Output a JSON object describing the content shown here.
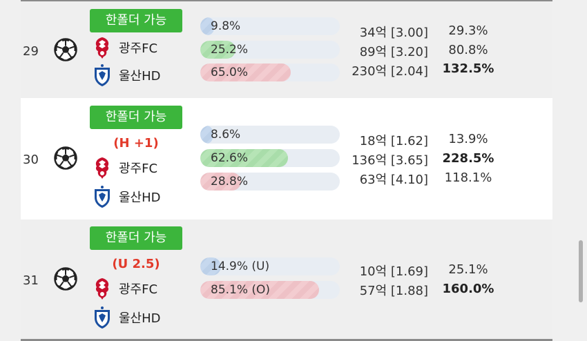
{
  "badge_label": "한폴더 가능",
  "matches": [
    {
      "no": "29",
      "handicap": "",
      "teams": [
        "광주FC",
        "울산HD"
      ],
      "bars": [
        {
          "label": "9.8%",
          "pct": 9.8,
          "color": "blue"
        },
        {
          "label": "25.2%",
          "pct": 25.2,
          "color": "green"
        },
        {
          "label": "65.0%",
          "pct": 65.0,
          "color": "red"
        }
      ],
      "odds": [
        "34억 [3.00]",
        "89억 [3.20]",
        "230억 [2.04]"
      ],
      "roi": [
        "29.3%",
        "80.8%",
        "132.5%"
      ]
    },
    {
      "no": "30",
      "handicap": "(H +1)",
      "teams": [
        "광주FC",
        "울산HD"
      ],
      "bars": [
        {
          "label": "8.6%",
          "pct": 8.6,
          "color": "blue"
        },
        {
          "label": "62.6%",
          "pct": 62.6,
          "color": "green"
        },
        {
          "label": "28.8%",
          "pct": 28.8,
          "color": "red"
        }
      ],
      "odds": [
        "18억 [1.62]",
        "136억 [3.65]",
        "63억 [4.10]"
      ],
      "roi": [
        "13.9%",
        "228.5%",
        "118.1%"
      ]
    },
    {
      "no": "31",
      "handicap": "(U 2.5)",
      "teams": [
        "광주FC",
        "울산HD"
      ],
      "bars": [
        {
          "label": "14.9% (U)",
          "pct": 14.9,
          "color": "blue"
        },
        {
          "label": "85.1% (O)",
          "pct": 85.1,
          "color": "red"
        }
      ],
      "odds": [
        "10억 [1.69]",
        "57억 [1.88]"
      ],
      "roi": [
        "25.1%",
        "160.0%"
      ]
    }
  ],
  "colors": {
    "badge": "#3cb53c",
    "handicap": "#e23a2a",
    "row_gray": "#efefef",
    "bar_track": "#e8edf3"
  },
  "icons": {
    "sport": "soccer-ball-icon",
    "home_crest": "gwangju-fc-crest-icon",
    "away_crest": "ulsan-hd-crest-icon"
  }
}
